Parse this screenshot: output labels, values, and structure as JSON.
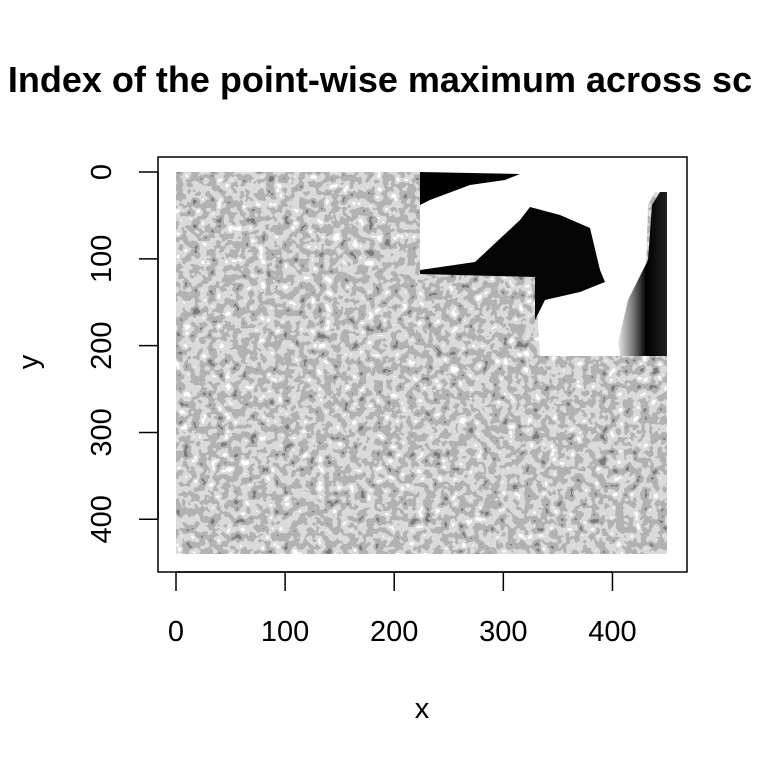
{
  "chart_data": {
    "type": "heatmap",
    "title": "Index of the point-wise maximum across sc",
    "xlabel": "x",
    "ylabel": "y",
    "xlim": [
      0,
      450
    ],
    "ylim": [
      0,
      440
    ],
    "y_reversed": true,
    "x_ticks": [
      0,
      100,
      200,
      300,
      400
    ],
    "y_ticks": [
      0,
      100,
      200,
      300,
      400
    ],
    "colormap": "grayscale",
    "grid": false,
    "legend": "none"
  }
}
